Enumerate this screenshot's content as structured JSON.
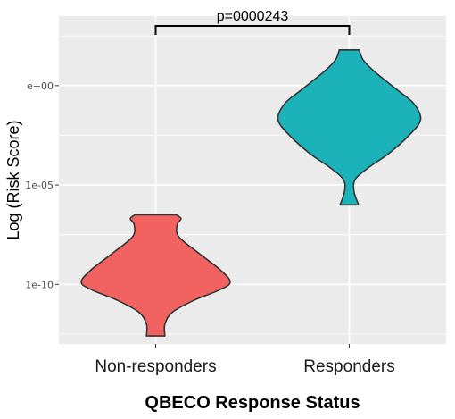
{
  "chart_data": {
    "type": "violin",
    "title": "",
    "xlabel": "QBECO Response Status",
    "ylabel": "Log (Risk Score)",
    "categories": [
      "Non-responders",
      "Responders"
    ],
    "y_scale": "log10",
    "ylim_exponent": [
      -13,
      3.5
    ],
    "y_ticks": [
      {
        "exponent": 0,
        "label": "e+00"
      },
      {
        "exponent": -5,
        "label": "1e-05"
      },
      {
        "exponent": -10,
        "label": "1e-10"
      }
    ],
    "grid": true,
    "legend": "none",
    "series": [
      {
        "category": "Non-responders",
        "color": "#f26260",
        "range_exponent": [
          -12.6,
          -6.5
        ],
        "profile": [
          [
            -6.5,
            0.27
          ],
          [
            -6.7,
            0.33
          ],
          [
            -7.0,
            0.28
          ],
          [
            -7.6,
            0.3
          ],
          [
            -8.4,
            0.55
          ],
          [
            -9.3,
            0.85
          ],
          [
            -9.9,
            0.97
          ],
          [
            -10.3,
            0.82
          ],
          [
            -10.8,
            0.5
          ],
          [
            -11.4,
            0.22
          ],
          [
            -12.0,
            0.12
          ],
          [
            -12.6,
            0.12
          ]
        ]
      },
      {
        "category": "Responders",
        "color": "#1bb3b9",
        "range_exponent": [
          -6.0,
          1.8
        ],
        "profile": [
          [
            1.8,
            0.13
          ],
          [
            1.3,
            0.18
          ],
          [
            0.7,
            0.33
          ],
          [
            -0.2,
            0.62
          ],
          [
            -0.9,
            0.84
          ],
          [
            -1.7,
            0.93
          ],
          [
            -2.5,
            0.78
          ],
          [
            -3.4,
            0.52
          ],
          [
            -4.1,
            0.26
          ],
          [
            -4.7,
            0.08
          ],
          [
            -5.3,
            0.06
          ],
          [
            -6.0,
            0.12
          ]
        ]
      }
    ],
    "annotation": {
      "text": "p=0000243",
      "between": [
        "Non-responders",
        "Responders"
      ]
    }
  },
  "colors": {
    "panel_background": "#ebebeb",
    "gridline": "#ffffff",
    "outline": "#333333"
  }
}
